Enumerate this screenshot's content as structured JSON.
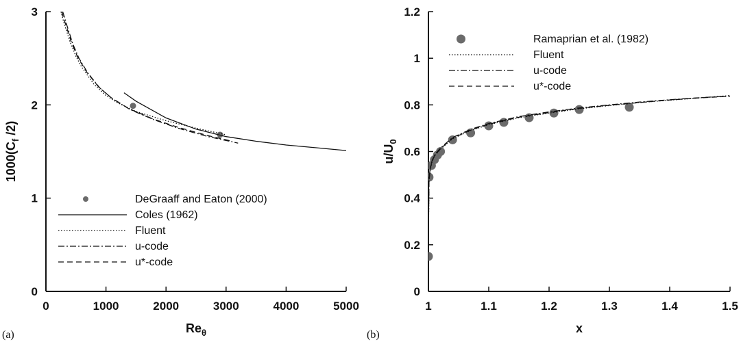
{
  "chart_data": [
    {
      "type": "line",
      "panel_label": "(a)",
      "xlabel": "Re",
      "xlabel_sub": "θ",
      "ylabel": "1000(C",
      "ylabel_sub": "f",
      "ylabel_tail": " /2)",
      "xlim": [
        0,
        5000
      ],
      "ylim": [
        0,
        3
      ],
      "xticks": [
        "0",
        "1000",
        "2000",
        "3000",
        "4000",
        "5000"
      ],
      "yticks": [
        "0",
        "1",
        "2",
        "3"
      ],
      "grid": false,
      "legend_position": "bottom-center",
      "series": [
        {
          "name": "DeGraaff and Eaton (2000)",
          "style": "marker",
          "x": [
            1450,
            2900
          ],
          "y": [
            1.99,
            1.68
          ]
        },
        {
          "name": "Coles (1962)",
          "style": "solid",
          "x": [
            1300,
            1500,
            2000,
            2500,
            3000,
            3500,
            4000,
            4500,
            5000
          ],
          "y": [
            2.13,
            2.04,
            1.86,
            1.74,
            1.66,
            1.61,
            1.57,
            1.54,
            1.51
          ]
        },
        {
          "name": "Fluent",
          "style": "dotted",
          "x": [
            250,
            300,
            400,
            500,
            600,
            800,
            1000,
            1200,
            1500,
            2000,
            2500,
            3000
          ],
          "y": [
            3.0,
            2.88,
            2.68,
            2.52,
            2.4,
            2.22,
            2.1,
            2.02,
            1.93,
            1.83,
            1.75,
            1.68
          ]
        },
        {
          "name": "u-code",
          "style": "dashdot",
          "x": [
            280,
            350,
            450,
            550,
            700,
            900,
            1100,
            1400,
            1800,
            2200,
            2700,
            3200
          ],
          "y": [
            3.0,
            2.85,
            2.65,
            2.5,
            2.34,
            2.18,
            2.07,
            1.95,
            1.84,
            1.75,
            1.66,
            1.59
          ]
        },
        {
          "name": "u*-code",
          "style": "dashed",
          "x": [
            260,
            330,
            430,
            530,
            680,
            880,
            1080,
            1380,
            1780,
            2200,
            2700,
            3100
          ],
          "y": [
            3.0,
            2.86,
            2.66,
            2.51,
            2.35,
            2.19,
            2.08,
            1.96,
            1.85,
            1.76,
            1.67,
            1.61
          ]
        }
      ]
    },
    {
      "type": "line",
      "panel_label": "(b)",
      "xlabel": "x",
      "ylabel": "u/U",
      "ylabel_sub": "0",
      "xlim": [
        1,
        1.5
      ],
      "ylim": [
        0,
        1.2
      ],
      "xticks": [
        "1",
        "1.1",
        "1.2",
        "1.3",
        "1.4",
        "1.5"
      ],
      "yticks": [
        "0",
        "0.2",
        "0.4",
        "0.6",
        "0.8",
        "1",
        "1.2"
      ],
      "grid": false,
      "legend_position": "top-right",
      "series": [
        {
          "name": "Ramaprian et al. (1982)",
          "style": "marker",
          "x": [
            1.0,
            1.001,
            1.005,
            1.01,
            1.015,
            1.02,
            1.04,
            1.07,
            1.1,
            1.125,
            1.167,
            1.208,
            1.25,
            1.333
          ],
          "y": [
            0.15,
            0.49,
            0.54,
            0.565,
            0.585,
            0.6,
            0.65,
            0.68,
            0.71,
            0.725,
            0.745,
            0.765,
            0.78,
            0.79
          ]
        },
        {
          "name": "Fluent",
          "style": "dotted",
          "x": [
            1.0,
            1.001,
            1.003,
            1.006,
            1.01,
            1.02,
            1.04,
            1.07,
            1.1,
            1.15,
            1.2,
            1.25,
            1.3,
            1.35,
            1.4,
            1.45,
            1.5
          ],
          "y": [
            0.2,
            0.47,
            0.52,
            0.555,
            0.58,
            0.61,
            0.655,
            0.69,
            0.715,
            0.745,
            0.765,
            0.783,
            0.797,
            0.81,
            0.82,
            0.83,
            0.84
          ]
        },
        {
          "name": "u-code",
          "style": "dashdot",
          "x": [
            1.0,
            1.001,
            1.003,
            1.006,
            1.01,
            1.02,
            1.04,
            1.07,
            1.1,
            1.15,
            1.2,
            1.25,
            1.3,
            1.35,
            1.4,
            1.45,
            1.5
          ],
          "y": [
            0.25,
            0.48,
            0.53,
            0.56,
            0.585,
            0.615,
            0.66,
            0.695,
            0.72,
            0.75,
            0.77,
            0.787,
            0.8,
            0.812,
            0.822,
            0.831,
            0.838
          ]
        },
        {
          "name": "u*-code",
          "style": "dashed",
          "x": [
            1.0,
            1.001,
            1.003,
            1.006,
            1.01,
            1.02,
            1.04,
            1.07,
            1.1,
            1.15,
            1.2,
            1.25,
            1.3,
            1.35,
            1.4,
            1.45,
            1.5
          ],
          "y": [
            0.22,
            0.475,
            0.525,
            0.558,
            0.582,
            0.612,
            0.657,
            0.692,
            0.717,
            0.747,
            0.767,
            0.785,
            0.798,
            0.81,
            0.821,
            0.83,
            0.837
          ]
        }
      ]
    }
  ]
}
